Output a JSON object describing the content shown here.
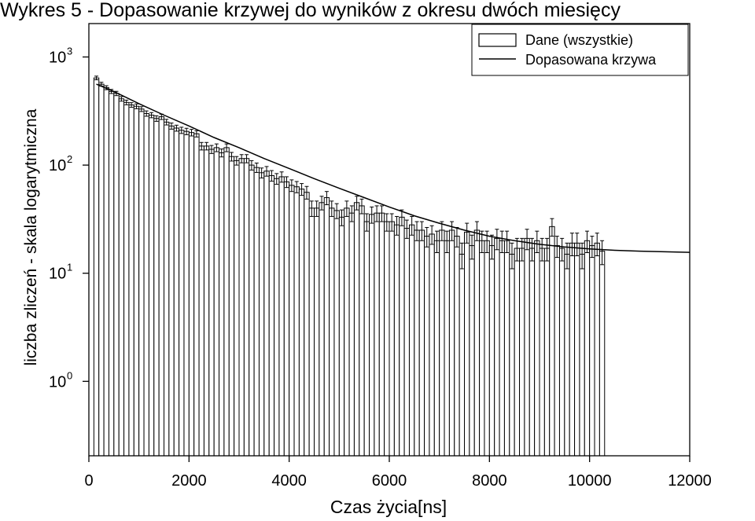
{
  "chart_data": {
    "type": "bar",
    "title": "Wykres 5 - Dopasowanie krzywej do wyników z okresu dwóch miesięcy",
    "xlabel": "Czas życia[ns]",
    "ylabel": "liczba zliczeń - skala logarytmiczna",
    "yscale": "log",
    "xlim": [
      0,
      12000
    ],
    "ylim": [
      0.2,
      1300
    ],
    "x_ticks": [
      "0",
      "2000",
      "4000",
      "6000",
      "8000",
      "10000",
      "12000"
    ],
    "x_tick_values": [
      0,
      2000,
      4000,
      6000,
      8000,
      10000,
      12000
    ],
    "y_ticks": [
      {
        "base": "10",
        "exp": "0",
        "value": 1
      },
      {
        "base": "10",
        "exp": "1",
        "value": 10
      },
      {
        "base": "10",
        "exp": "2",
        "value": 100
      },
      {
        "base": "10",
        "exp": "3",
        "value": 1000
      }
    ],
    "legend": {
      "position": "top-right",
      "entries": [
        {
          "label": "Dane (wszystkie)",
          "kind": "bar"
        },
        {
          "label": "Dopasowana krzywa",
          "kind": "line"
        }
      ]
    },
    "bin_width": 100,
    "bins_start": 100,
    "series": [
      {
        "name": "Dane (wszystkie)",
        "values": [
          640,
          560,
          520,
          480,
          460,
          410,
          380,
          360,
          350,
          330,
          300,
          290,
          270,
          280,
          250,
          230,
          220,
          210,
          205,
          200,
          195,
          150,
          150,
          140,
          145,
          130,
          145,
          120,
          110,
          115,
          115,
          100,
          95,
          85,
          88,
          80,
          75,
          78,
          70,
          65,
          63,
          60,
          56,
          40,
          40,
          45,
          50,
          40,
          38,
          33,
          40,
          36,
          45,
          42,
          30,
          35,
          36,
          36,
          30,
          30,
          28,
          33,
          26,
          28,
          25,
          25,
          22,
          23,
          20,
          25,
          20,
          25,
          22,
          15,
          24,
          18,
          25,
          20,
          20,
          18,
          21,
          20,
          20,
          15,
          17,
          17,
          21,
          17,
          20,
          17,
          17,
          27,
          18,
          17,
          15,
          19,
          19,
          15,
          20,
          18,
          19,
          16
        ],
        "errors": [
          25,
          23,
          22,
          21,
          21,
          20,
          19,
          18,
          18,
          17,
          17,
          16,
          16,
          16,
          15,
          15,
          14,
          14,
          14,
          14,
          13,
          12,
          12,
          12,
          12,
          11,
          12,
          11,
          10,
          10,
          10,
          10,
          9.5,
          9,
          9,
          9,
          8.5,
          8.5,
          8,
          8,
          7.5,
          7.5,
          7.5,
          6.5,
          6.5,
          6.5,
          7,
          6.5,
          6,
          5.5,
          6.5,
          6,
          6.5,
          6.5,
          5.5,
          6,
          6,
          6,
          5.5,
          5.5,
          5.5,
          5.5,
          5,
          5.5,
          5,
          5,
          4.5,
          4.5,
          4.5,
          5,
          4.5,
          5,
          4.5,
          4,
          5,
          4.5,
          5,
          4.5,
          4.5,
          4.5,
          4.5,
          4.5,
          4.5,
          4,
          4,
          4,
          4.5,
          4,
          4.5,
          4,
          4,
          5,
          4,
          4,
          4,
          4.5,
          4.5,
          4,
          4.5,
          4,
          4.5,
          4
        ]
      },
      {
        "name": "Dopasowana krzywa",
        "x": [
          150,
          500,
          1000,
          1500,
          2000,
          2500,
          3000,
          3500,
          4000,
          4500,
          5000,
          5500,
          6000,
          6500,
          7000,
          7500,
          8000,
          8500,
          9000,
          9500,
          10000,
          10500,
          11000,
          11500,
          12000
        ],
        "values": [
          560,
          480,
          370,
          290,
          230,
          180,
          145,
          115,
          93,
          75,
          61,
          50,
          41,
          34,
          29,
          25,
          22,
          20,
          18.5,
          17.5,
          16.8,
          16.3,
          16,
          15.8,
          15.6
        ]
      }
    ]
  }
}
